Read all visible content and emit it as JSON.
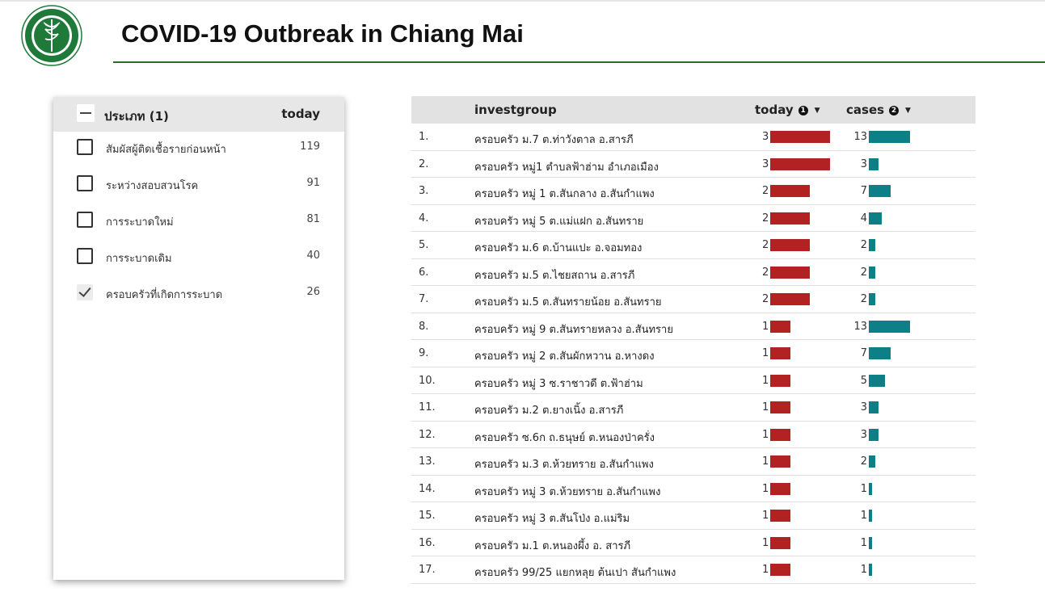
{
  "header": {
    "title": "COVID-19 Outbreak in Chiang Mai"
  },
  "logo": {
    "icon": "department-seal-logo"
  },
  "filter": {
    "title": "ประเภท (1)",
    "column": "today",
    "items": [
      {
        "label": "สัมผัสผู้ติดเชื้อรายก่อนหน้า",
        "count": "119",
        "checked": false
      },
      {
        "label": "ระหว่างสอบสวนโรค",
        "count": "91",
        "checked": false
      },
      {
        "label": "การระบาดใหม่",
        "count": "81",
        "checked": false
      },
      {
        "label": "การระบาดเดิม",
        "count": "40",
        "checked": false
      },
      {
        "label": "ครอบครัวที่เกิดการระบาด",
        "count": "26",
        "checked": true
      }
    ]
  },
  "table": {
    "columns": {
      "group": "investgroup",
      "today": "today",
      "today_badge": "1",
      "cases": "cases",
      "cases_badge": "2"
    },
    "colors": {
      "today_bar": "#b22222",
      "cases_bar": "#0d7f87"
    },
    "rows": [
      {
        "idx": "1.",
        "group": "ครอบครัว ม.7 ต.ท่าวังตาล อ.สารภี",
        "today": 3,
        "cases": 13
      },
      {
        "idx": "2.",
        "group": "ครอบครัว หมู่1 ตำบลฟ้าฮ่าม อำเภอเมือง",
        "today": 3,
        "cases": 3
      },
      {
        "idx": "3.",
        "group": "ครอบครัว หมู่ 1 ต.สันกลาง อ.สันกำแพง",
        "today": 2,
        "cases": 7
      },
      {
        "idx": "4.",
        "group": "ครอบครัว หมู่ 5 ต.แม่แฝก อ.สันทราย",
        "today": 2,
        "cases": 4
      },
      {
        "idx": "5.",
        "group": "ครอบครัว ม.6 ต.บ้านแปะ อ.จอมทอง",
        "today": 2,
        "cases": 2
      },
      {
        "idx": "6.",
        "group": "ครอบครัว ม.5 ต.ไชยสถาน อ.สารภี",
        "today": 2,
        "cases": 2
      },
      {
        "idx": "7.",
        "group": "ครอบครัว ม.5 ต.สันทรายน้อย อ.สันทราย",
        "today": 2,
        "cases": 2
      },
      {
        "idx": "8.",
        "group": "ครอบครัว หมู่ 9 ต.สันทรายหลวง อ.สันทราย",
        "today": 1,
        "cases": 13
      },
      {
        "idx": "9.",
        "group": "ครอบครัว หมู่ 2 ต.สันผักหวาน อ.หางดง",
        "today": 1,
        "cases": 7
      },
      {
        "idx": "10.",
        "group": "ครอบครัว หมู่ 3 ซ.ราชาวดี ต.ฟ้าฮ่าม",
        "today": 1,
        "cases": 5
      },
      {
        "idx": "11.",
        "group": "ครอบครัว ม.2 ต.ยางเนิ้ง อ.สารภี",
        "today": 1,
        "cases": 3
      },
      {
        "idx": "12.",
        "group": "ครอบครัว ซ.6ก ถ.ธนุษย์ ต.หนองป่าครั่ง",
        "today": 1,
        "cases": 3
      },
      {
        "idx": "13.",
        "group": "ครอบครัว ม.3 ต.ห้วยทราย อ.สันกำแพง",
        "today": 1,
        "cases": 2
      },
      {
        "idx": "14.",
        "group": "ครอบครัว หมู่ 3 ต.ห้วยทราย อ.สันกำแพง",
        "today": 1,
        "cases": 1
      },
      {
        "idx": "15.",
        "group": "ครอบครัว หมู่ 3 ต.สันโป่ง อ.แม่ริม",
        "today": 1,
        "cases": 1
      },
      {
        "idx": "16.",
        "group": "ครอบครัว ม.1 ต.หนองผึ้ง อ. สารภี",
        "today": 1,
        "cases": 1
      },
      {
        "idx": "17.",
        "group": "ครอบครัว 99/25 แยกหลุย ต้นเปา สันกำแพง",
        "today": 1,
        "cases": 1
      }
    ]
  }
}
